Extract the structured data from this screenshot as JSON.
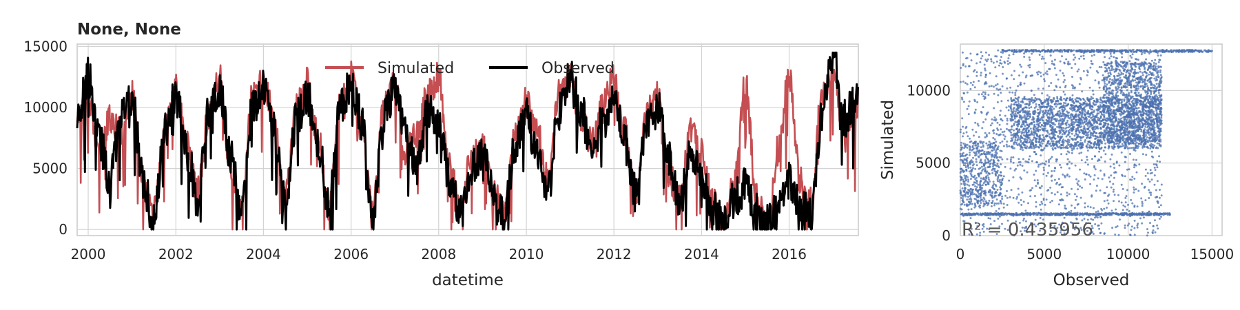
{
  "chart_data": [
    {
      "type": "line",
      "title": "None, None",
      "xlabel": "datetime",
      "ylabel": "",
      "x_range": [
        "1999-10-01",
        "2017-07-31"
      ],
      "ylim": [
        -500,
        15200
      ],
      "yticks": [
        "0",
        "5000",
        "10000",
        "15000"
      ],
      "xticks": [
        "2000",
        "2002",
        "2004",
        "2006",
        "2008",
        "2010",
        "2012",
        "2014",
        "2016"
      ],
      "grid": true,
      "legend_position": "top-center",
      "series": [
        {
          "name": "Simulated",
          "color": "#c44e52",
          "points": [
            [
              "1999-10-01",
              9500
            ],
            [
              "2000-01-01",
              11000
            ],
            [
              "2000-04-01",
              6500
            ],
            [
              "2000-07-01",
              9000
            ],
            [
              "2000-10-01",
              8000
            ],
            [
              "2001-01-01",
              11000
            ],
            [
              "2001-04-01",
              3500
            ],
            [
              "2001-07-01",
              1500
            ],
            [
              "2001-10-01",
              8000
            ],
            [
              "2002-01-01",
              11500
            ],
            [
              "2002-04-01",
              7000
            ],
            [
              "2002-07-01",
              3000
            ],
            [
              "2002-10-01",
              9500
            ],
            [
              "2003-01-01",
              12500
            ],
            [
              "2003-04-01",
              5000
            ],
            [
              "2003-07-01",
              1500
            ],
            [
              "2003-10-01",
              11000
            ],
            [
              "2004-01-01",
              12000
            ],
            [
              "2004-04-01",
              9000
            ],
            [
              "2004-07-01",
              2500
            ],
            [
              "2004-10-01",
              10000
            ],
            [
              "2005-01-01",
              12000
            ],
            [
              "2005-04-01",
              7500
            ],
            [
              "2005-07-01",
              1500
            ],
            [
              "2005-10-01",
              10500
            ],
            [
              "2006-01-01",
              12500
            ],
            [
              "2006-04-01",
              8000
            ],
            [
              "2006-07-01",
              1500
            ],
            [
              "2006-10-01",
              10000
            ],
            [
              "2007-01-01",
              12000
            ],
            [
              "2007-04-01",
              6000
            ],
            [
              "2007-07-01",
              8000
            ],
            [
              "2007-10-01",
              11000
            ],
            [
              "2008-01-01",
              12500
            ],
            [
              "2008-04-01",
              5000
            ],
            [
              "2008-07-01",
              2000
            ],
            [
              "2008-10-01",
              6000
            ],
            [
              "2009-01-01",
              7000
            ],
            [
              "2009-04-01",
              3500
            ],
            [
              "2009-07-01",
              1500
            ],
            [
              "2009-10-01",
              7500
            ],
            [
              "2010-01-01",
              10500
            ],
            [
              "2010-04-01",
              8000
            ],
            [
              "2010-07-01",
              4000
            ],
            [
              "2010-10-01",
              11000
            ],
            [
              "2011-01-01",
              12500
            ],
            [
              "2011-04-01",
              9000
            ],
            [
              "2011-07-01",
              7000
            ],
            [
              "2011-10-01",
              10000
            ],
            [
              "2012-01-01",
              12500
            ],
            [
              "2012-04-01",
              8000
            ],
            [
              "2012-07-01",
              2500
            ],
            [
              "2012-10-01",
              9500
            ],
            [
              "2013-01-01",
              11000
            ],
            [
              "2013-04-01",
              4500
            ],
            [
              "2013-07-01",
              2500
            ],
            [
              "2013-10-01",
              8000
            ],
            [
              "2014-01-01",
              6500
            ],
            [
              "2014-04-01",
              2500
            ],
            [
              "2014-07-01",
              0
            ],
            [
              "2014-10-01",
              4000
            ],
            [
              "2015-01-01",
              12000
            ],
            [
              "2015-04-01",
              3000
            ],
            [
              "2015-07-01",
              0
            ],
            [
              "2015-10-01",
              6500
            ],
            [
              "2016-01-01",
              12500
            ],
            [
              "2016-04-01",
              4000
            ],
            [
              "2016-07-01",
              2500
            ],
            [
              "2016-10-01",
              11000
            ],
            [
              "2017-01-01",
              13000
            ],
            [
              "2017-04-01",
              8000
            ],
            [
              "2017-07-31",
              10500
            ]
          ]
        },
        {
          "name": "Observed",
          "color": "#000000",
          "points": [
            [
              "1999-10-01",
              9000
            ],
            [
              "2000-01-01",
              12500
            ],
            [
              "2000-04-01",
              7500
            ],
            [
              "2000-07-01",
              4000
            ],
            [
              "2000-10-01",
              9500
            ],
            [
              "2001-01-01",
              11000
            ],
            [
              "2001-04-01",
              4000
            ],
            [
              "2001-07-01",
              500
            ],
            [
              "2001-10-01",
              8000
            ],
            [
              "2002-01-01",
              11000
            ],
            [
              "2002-04-01",
              6500
            ],
            [
              "2002-07-01",
              2500
            ],
            [
              "2002-10-01",
              9500
            ],
            [
              "2003-01-01",
              11500
            ],
            [
              "2003-04-01",
              6000
            ],
            [
              "2003-07-01",
              1500
            ],
            [
              "2003-10-01",
              10000
            ],
            [
              "2004-01-01",
              11500
            ],
            [
              "2004-04-01",
              8000
            ],
            [
              "2004-07-01",
              2000
            ],
            [
              "2004-10-01",
              9000
            ],
            [
              "2005-01-01",
              11000
            ],
            [
              "2005-04-01",
              7000
            ],
            [
              "2005-07-01",
              2000
            ],
            [
              "2005-10-01",
              10000
            ],
            [
              "2006-01-01",
              12000
            ],
            [
              "2006-04-01",
              9000
            ],
            [
              "2006-07-01",
              1000
            ],
            [
              "2006-10-01",
              9500
            ],
            [
              "2007-01-01",
              11500
            ],
            [
              "2007-04-01",
              8000
            ],
            [
              "2007-07-01",
              5000
            ],
            [
              "2007-10-01",
              9500
            ],
            [
              "2008-01-01",
              9000
            ],
            [
              "2008-04-01",
              4000
            ],
            [
              "2008-07-01",
              1500
            ],
            [
              "2008-10-01",
              5000
            ],
            [
              "2009-01-01",
              6000
            ],
            [
              "2009-04-01",
              3000
            ],
            [
              "2009-07-01",
              1000
            ],
            [
              "2009-10-01",
              7000
            ],
            [
              "2010-01-01",
              9500
            ],
            [
              "2010-04-01",
              6000
            ],
            [
              "2010-07-01",
              3000
            ],
            [
              "2010-10-01",
              10000
            ],
            [
              "2011-01-01",
              12500
            ],
            [
              "2011-04-01",
              10000
            ],
            [
              "2011-07-01",
              6000
            ],
            [
              "2011-10-01",
              9000
            ],
            [
              "2012-01-01",
              11000
            ],
            [
              "2012-04-01",
              7000
            ],
            [
              "2012-07-01",
              3000
            ],
            [
              "2012-10-01",
              8500
            ],
            [
              "2013-01-01",
              10000
            ],
            [
              "2013-04-01",
              6000
            ],
            [
              "2013-07-01",
              2000
            ],
            [
              "2013-10-01",
              6000
            ],
            [
              "2014-01-01",
              4500
            ],
            [
              "2014-04-01",
              2000
            ],
            [
              "2014-07-01",
              1000
            ],
            [
              "2014-10-01",
              2500
            ],
            [
              "2015-01-01",
              3500
            ],
            [
              "2015-04-01",
              1500
            ],
            [
              "2015-07-01",
              500
            ],
            [
              "2015-10-01",
              2000
            ],
            [
              "2016-01-01",
              4000
            ],
            [
              "2016-04-01",
              2000
            ],
            [
              "2016-07-01",
              1000
            ],
            [
              "2016-10-01",
              9500
            ],
            [
              "2017-01-01",
              14500
            ],
            [
              "2017-04-01",
              9000
            ],
            [
              "2017-07-31",
              11500
            ]
          ]
        }
      ]
    },
    {
      "type": "scatter",
      "title": "",
      "xlabel": "Observed",
      "ylabel": "Simulated",
      "xlim": [
        0,
        15600
      ],
      "ylim": [
        0,
        13200
      ],
      "xticks": [
        "0",
        "5000",
        "10000",
        "15000"
      ],
      "yticks": [
        "0",
        "5000",
        "10000"
      ],
      "grid": true,
      "color": "#4c72b0",
      "annotation_prefix": "R² = ",
      "annotation_value": "0.435956",
      "clusters": [
        {
          "x_range": [
            0,
            12000
          ],
          "y_range": [
            0,
            12800
          ],
          "count": 1400
        },
        {
          "x_range": [
            3000,
            12000
          ],
          "y_range": [
            6000,
            9500
          ],
          "count": 2000
        },
        {
          "x_range": [
            8500,
            12000
          ],
          "y_range": [
            6500,
            12000
          ],
          "count": 1000
        },
        {
          "x_range": [
            0,
            2500
          ],
          "y_range": [
            2000,
            6500
          ],
          "count": 450
        },
        {
          "x_range": [
            0,
            12500
          ],
          "y_range": [
            1400,
            1550
          ],
          "count": 600
        },
        {
          "x_range": [
            2500,
            15000
          ],
          "y_range": [
            12650,
            12800
          ],
          "count": 450
        }
      ]
    }
  ]
}
